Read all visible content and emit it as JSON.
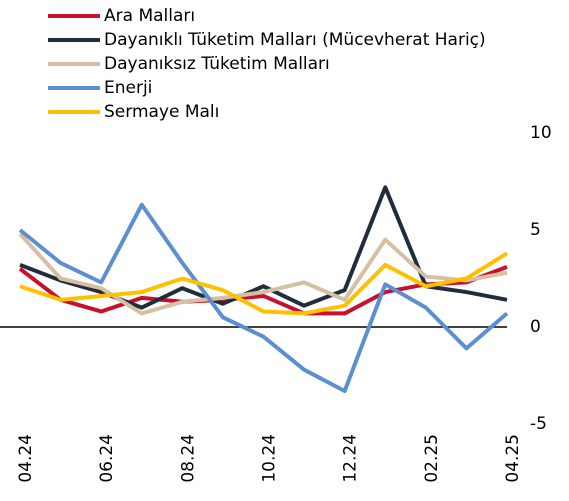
{
  "chart_data": {
    "type": "line",
    "categories": [
      "04.24",
      null,
      "06.24",
      null,
      "08.24",
      null,
      "10.24",
      null,
      "12.24",
      null,
      "02.25",
      null,
      "04.25"
    ],
    "series": [
      {
        "name": "Ara Malları",
        "color": "#c8102e",
        "values": [
          3.0,
          1.4,
          0.8,
          1.5,
          1.3,
          1.4,
          1.6,
          0.7,
          0.7,
          1.8,
          2.2,
          2.3,
          3.1
        ]
      },
      {
        "name": "Dayanıklı Tüketim Malları (Mücevherat Hariç)",
        "color": "#1f2d3d",
        "values": [
          3.2,
          2.4,
          1.8,
          1.0,
          2.0,
          1.2,
          2.1,
          1.1,
          1.9,
          7.2,
          2.1,
          1.8,
          1.4
        ]
      },
      {
        "name": "Dayanıksız Tüketim Malları",
        "color": "#d6c0a3",
        "values": [
          4.8,
          2.5,
          2.0,
          0.7,
          1.3,
          1.5,
          1.8,
          2.3,
          1.4,
          4.5,
          2.6,
          2.4,
          2.8
        ]
      },
      {
        "name": "Enerji",
        "color": "#5b8fd0",
        "values": [
          5.0,
          3.3,
          2.3,
          6.3,
          3.3,
          0.5,
          -0.5,
          -2.2,
          -3.3,
          2.2,
          1.0,
          -1.1,
          0.7
        ]
      },
      {
        "name": "Sermaye Malı",
        "color": "#ffc000",
        "values": [
          2.1,
          1.4,
          1.6,
          1.8,
          2.5,
          1.9,
          0.8,
          0.7,
          1.1,
          3.2,
          2.1,
          2.5,
          3.8
        ]
      }
    ],
    "ylim": [
      -5,
      10
    ],
    "yticks": [
      -5,
      0,
      5,
      10
    ],
    "grid": false
  }
}
